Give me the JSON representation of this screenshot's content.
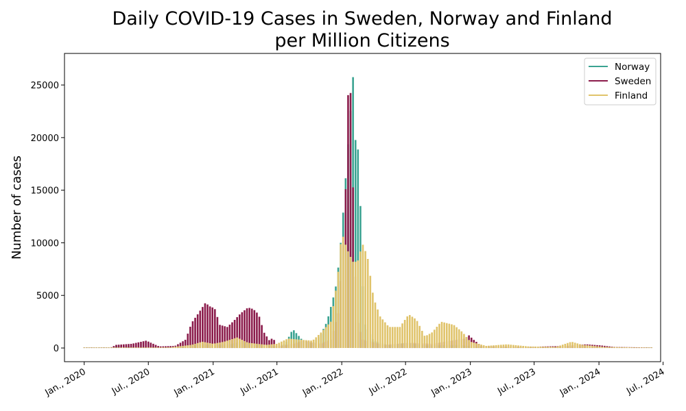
{
  "chart_data": {
    "type": "line",
    "title": "Daily COVID-19 Cases in Sweden, Norway and Finland\nper Million Citizens",
    "xlabel": "",
    "ylabel": "Number of cases",
    "x_ticks": [
      "Jan., 2020",
      "Jul., 2020",
      "Jan., 2021",
      "Jul., 2021",
      "Jan., 2022",
      "Jul., 2022",
      "Jan., 2023",
      "Jul., 2023",
      "Jan., 2024",
      "Jul., 2024"
    ],
    "y_ticks": [
      0,
      5000,
      10000,
      15000,
      20000,
      25000
    ],
    "ylim": [
      -1300,
      28000
    ],
    "xlim": [
      "2019-11-06",
      "2024-06-24"
    ],
    "legend_position": "top-right",
    "grid": false,
    "series": [
      {
        "name": "Norway",
        "color": "#3aa391",
        "points": [
          [
            "2020-01-01",
            0
          ],
          [
            "2020-03-15",
            10
          ],
          [
            "2020-04-01",
            250
          ],
          [
            "2020-05-01",
            150
          ],
          [
            "2020-06-15",
            30
          ],
          [
            "2020-08-15",
            40
          ],
          [
            "2020-10-01",
            100
          ],
          [
            "2020-11-15",
            400
          ],
          [
            "2021-01-01",
            300
          ],
          [
            "2021-02-15",
            350
          ],
          [
            "2021-03-25",
            600
          ],
          [
            "2021-05-01",
            400
          ],
          [
            "2021-07-01",
            150
          ],
          [
            "2021-07-25",
            400
          ],
          [
            "2021-08-15",
            1800
          ],
          [
            "2021-09-10",
            800
          ],
          [
            "2021-10-10",
            400
          ],
          [
            "2021-11-01",
            1200
          ],
          [
            "2021-11-20",
            2500
          ],
          [
            "2021-12-08",
            4800
          ],
          [
            "2021-12-18",
            6300
          ],
          [
            "2022-01-01",
            11000
          ],
          [
            "2022-01-16",
            18000
          ],
          [
            "2022-01-27",
            23000
          ],
          [
            "2022-02-03",
            26200
          ],
          [
            "2022-02-10",
            18700
          ],
          [
            "2022-02-17",
            18900
          ],
          [
            "2022-02-24",
            12600
          ],
          [
            "2022-03-05",
            2500
          ],
          [
            "2022-04-01",
            700
          ],
          [
            "2022-05-15",
            250
          ],
          [
            "2022-07-01",
            500
          ],
          [
            "2022-09-01",
            250
          ],
          [
            "2022-12-01",
            300
          ],
          [
            "2023-01-15",
            100
          ],
          [
            "2023-06-01",
            30
          ],
          [
            "2024-06-01",
            10
          ]
        ]
      },
      {
        "name": "Sweden",
        "color": "#8a1a4a",
        "points": [
          [
            "2020-01-01",
            0
          ],
          [
            "2020-03-15",
            30
          ],
          [
            "2020-04-01",
            300
          ],
          [
            "2020-05-15",
            400
          ],
          [
            "2020-06-25",
            700
          ],
          [
            "2020-07-15",
            400
          ],
          [
            "2020-08-01",
            150
          ],
          [
            "2020-09-15",
            200
          ],
          [
            "2020-10-15",
            800
          ],
          [
            "2020-11-01",
            2400
          ],
          [
            "2020-11-20",
            3300
          ],
          [
            "2020-12-10",
            4300
          ],
          [
            "2020-12-25",
            3900
          ],
          [
            "2021-01-05",
            3800
          ],
          [
            "2021-01-20",
            2200
          ],
          [
            "2021-02-10",
            2000
          ],
          [
            "2021-03-01",
            2600
          ],
          [
            "2021-03-20",
            3300
          ],
          [
            "2021-04-10",
            3850
          ],
          [
            "2021-04-25",
            3700
          ],
          [
            "2021-05-10",
            3200
          ],
          [
            "2021-05-25",
            1500
          ],
          [
            "2021-06-10",
            700
          ],
          [
            "2021-06-20",
            1000
          ],
          [
            "2021-07-01",
            150
          ],
          [
            "2021-08-15",
            400
          ],
          [
            "2021-09-15",
            700
          ],
          [
            "2021-11-01",
            400
          ],
          [
            "2021-12-01",
            800
          ],
          [
            "2021-12-22",
            3300
          ],
          [
            "2022-01-04",
            9000
          ],
          [
            "2022-01-12",
            15100
          ],
          [
            "2022-01-18",
            23500
          ],
          [
            "2022-01-24",
            26700
          ],
          [
            "2022-01-31",
            18100
          ],
          [
            "2022-02-07",
            8200
          ],
          [
            "2022-02-15",
            2500
          ],
          [
            "2022-03-01",
            800
          ],
          [
            "2022-05-01",
            300
          ],
          [
            "2022-07-15",
            500
          ],
          [
            "2022-09-15",
            400
          ],
          [
            "2022-12-15",
            900
          ],
          [
            "2022-12-28",
            1200
          ],
          [
            "2023-01-10",
            800
          ],
          [
            "2023-02-01",
            200
          ],
          [
            "2023-06-01",
            100
          ],
          [
            "2023-10-01",
            200
          ],
          [
            "2023-11-25",
            350
          ],
          [
            "2024-01-05",
            250
          ],
          [
            "2024-02-15",
            100
          ],
          [
            "2024-06-01",
            50
          ]
        ]
      },
      {
        "name": "Finland",
        "color": "#e0c36a",
        "points": [
          [
            "2020-01-01",
            0
          ],
          [
            "2020-04-01",
            50
          ],
          [
            "2020-06-01",
            30
          ],
          [
            "2020-09-01",
            60
          ],
          [
            "2020-11-01",
            300
          ],
          [
            "2020-12-01",
            600
          ],
          [
            "2021-01-01",
            400
          ],
          [
            "2021-02-01",
            600
          ],
          [
            "2021-03-10",
            1000
          ],
          [
            "2021-04-10",
            500
          ],
          [
            "2021-06-01",
            300
          ],
          [
            "2021-07-01",
            400
          ],
          [
            "2021-08-01",
            900
          ],
          [
            "2021-09-01",
            800
          ],
          [
            "2021-10-10",
            700
          ],
          [
            "2021-11-01",
            1400
          ],
          [
            "2021-12-01",
            2500
          ],
          [
            "2021-12-20",
            6500
          ],
          [
            "2022-01-01",
            11000
          ],
          [
            "2022-01-15",
            9500
          ],
          [
            "2022-02-01",
            8200
          ],
          [
            "2022-02-15",
            8200
          ],
          [
            "2022-03-01",
            9900
          ],
          [
            "2022-03-15",
            8700
          ],
          [
            "2022-04-01",
            4800
          ],
          [
            "2022-04-20",
            3000
          ],
          [
            "2022-05-15",
            2000
          ],
          [
            "2022-06-15",
            2000
          ],
          [
            "2022-07-10",
            3200
          ],
          [
            "2022-08-01",
            2700
          ],
          [
            "2022-08-25",
            1100
          ],
          [
            "2022-09-15",
            1500
          ],
          [
            "2022-10-10",
            2500
          ],
          [
            "2022-11-15",
            2200
          ],
          [
            "2022-12-10",
            1500
          ],
          [
            "2023-01-01",
            600
          ],
          [
            "2023-02-15",
            200
          ],
          [
            "2023-04-15",
            350
          ],
          [
            "2023-06-15",
            150
          ],
          [
            "2023-09-01",
            100
          ],
          [
            "2023-10-15",
            600
          ],
          [
            "2023-11-15",
            300
          ],
          [
            "2024-01-15",
            100
          ],
          [
            "2024-06-01",
            30
          ]
        ]
      }
    ]
  }
}
